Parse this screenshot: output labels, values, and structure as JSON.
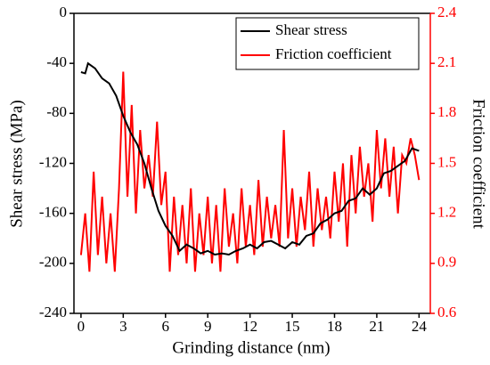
{
  "chart_data": {
    "type": "line",
    "xlabel": "Grinding distance (nm)",
    "ylabel": "Shear stress (MPa)",
    "y2label": "Friction coefficient",
    "xlim": [
      -0.5,
      24.8
    ],
    "xticks": [
      0,
      3,
      6,
      9,
      12,
      15,
      18,
      21,
      24
    ],
    "ylim": [
      -240,
      0
    ],
    "yticks": [
      -240,
      -200,
      -160,
      -120,
      -80,
      -40,
      0
    ],
    "y2lim": [
      0.6,
      2.4
    ],
    "y2ticks": [
      0.6,
      0.9,
      1.2,
      1.5,
      1.8,
      2.1,
      2.4
    ],
    "legend": "upper right",
    "series": [
      {
        "name": "Shear stress",
        "color": "#000000",
        "x": [
          0,
          0.3,
          0.5,
          1,
          1.5,
          2,
          2.5,
          3,
          3.5,
          4,
          4.5,
          5,
          5.5,
          6,
          6.5,
          7,
          7.5,
          8,
          8.5,
          9,
          9.5,
          10,
          10.5,
          11,
          11.5,
          12,
          12.5,
          13,
          13.5,
          14,
          14.5,
          15,
          15.5,
          16,
          16.5,
          17,
          17.5,
          18,
          18.5,
          19,
          19.5,
          20,
          20.5,
          21,
          21.5,
          22,
          22.5,
          23,
          23.5,
          24
        ],
        "values": [
          -47,
          -48,
          -40,
          -44,
          -52,
          -56,
          -66,
          -82,
          -95,
          -105,
          -120,
          -140,
          -158,
          -170,
          -178,
          -190,
          -185,
          -188,
          -192,
          -190,
          -193,
          -192,
          -193,
          -190,
          -188,
          -185,
          -188,
          -183,
          -182,
          -185,
          -188,
          -183,
          -185,
          -178,
          -176,
          -168,
          -165,
          -160,
          -158,
          -150,
          -148,
          -140,
          -145,
          -140,
          -128,
          -126,
          -122,
          -118,
          -108,
          -110
        ]
      },
      {
        "name": "Friction coefficient",
        "color": "#ff0000",
        "axis": "y2",
        "x": [
          0,
          0.3,
          0.6,
          0.9,
          1.2,
          1.5,
          1.8,
          2.1,
          2.4,
          2.7,
          3.0,
          3.3,
          3.6,
          3.9,
          4.2,
          4.5,
          4.8,
          5.1,
          5.4,
          5.7,
          6.0,
          6.3,
          6.6,
          6.9,
          7.2,
          7.5,
          7.8,
          8.1,
          8.4,
          8.7,
          9.0,
          9.3,
          9.6,
          9.9,
          10.2,
          10.5,
          10.8,
          11.1,
          11.4,
          11.7,
          12.0,
          12.3,
          12.6,
          12.9,
          13.2,
          13.5,
          13.8,
          14.1,
          14.4,
          14.7,
          15.0,
          15.3,
          15.6,
          15.9,
          16.2,
          16.5,
          16.8,
          17.1,
          17.4,
          17.7,
          18.0,
          18.3,
          18.6,
          18.9,
          19.2,
          19.5,
          19.8,
          20.1,
          20.4,
          20.7,
          21.0,
          21.3,
          21.6,
          21.9,
          22.2,
          22.5,
          22.8,
          23.1,
          23.4,
          23.7,
          24.0
        ],
        "values": [
          0.95,
          1.2,
          0.85,
          1.45,
          0.95,
          1.3,
          0.9,
          1.2,
          0.85,
          1.35,
          2.05,
          1.3,
          1.85,
          1.2,
          1.7,
          1.35,
          1.55,
          1.3,
          1.75,
          1.25,
          1.45,
          0.85,
          1.3,
          0.95,
          1.25,
          0.9,
          1.35,
          0.85,
          1.2,
          0.95,
          1.3,
          0.9,
          1.25,
          0.85,
          1.35,
          1.0,
          1.2,
          0.9,
          1.35,
          1.0,
          1.25,
          0.95,
          1.4,
          1.0,
          1.3,
          1.05,
          1.25,
          1.0,
          1.7,
          1.05,
          1.35,
          1.0,
          1.3,
          1.1,
          1.45,
          1.0,
          1.35,
          1.1,
          1.3,
          1.05,
          1.45,
          1.15,
          1.5,
          1.0,
          1.55,
          1.2,
          1.6,
          1.3,
          1.5,
          1.15,
          1.7,
          1.35,
          1.65,
          1.3,
          1.6,
          1.2,
          1.55,
          1.5,
          1.65,
          1.55,
          1.4
        ]
      }
    ]
  }
}
